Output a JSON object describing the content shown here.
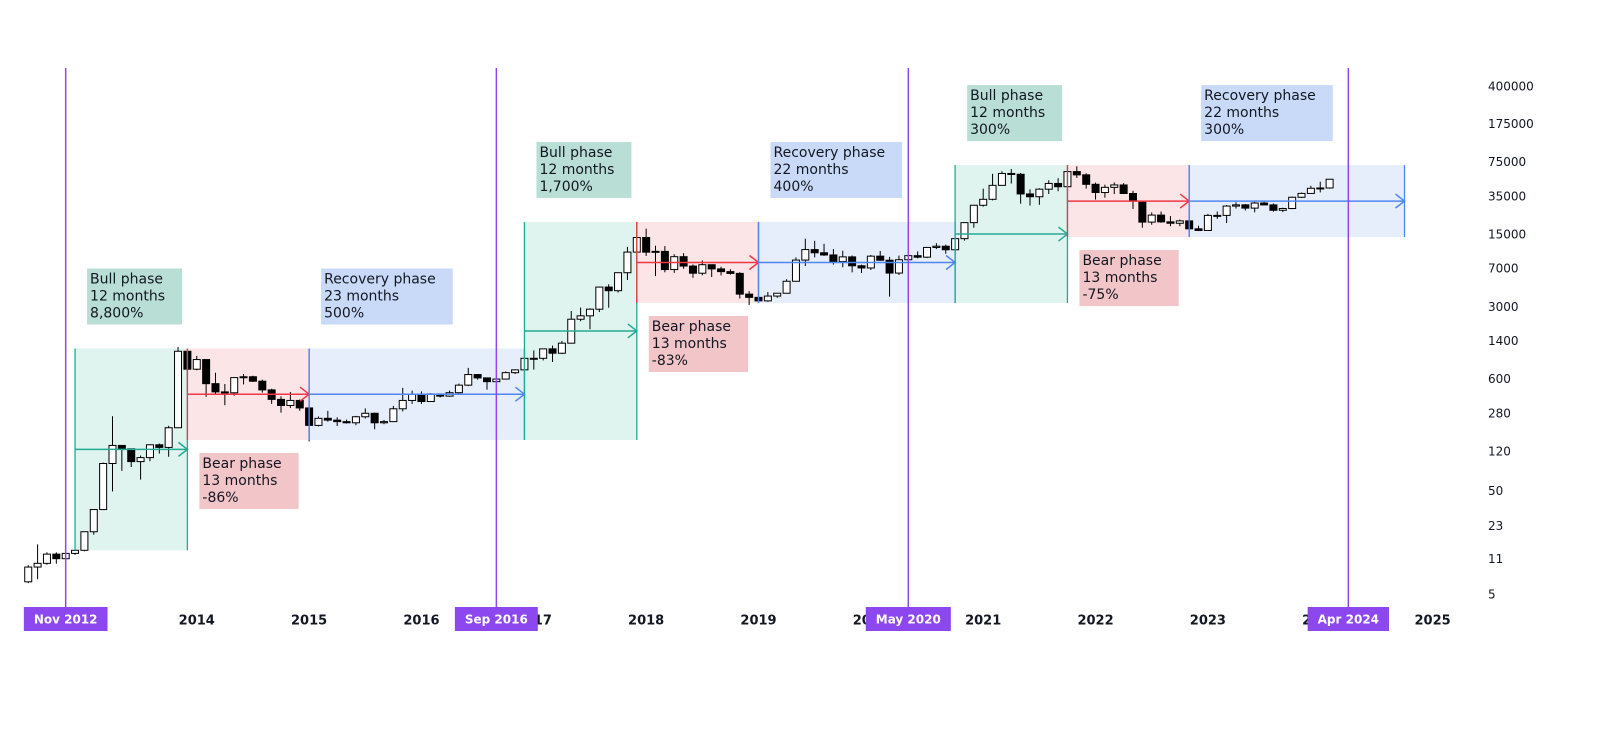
{
  "chart_data": {
    "type": "candlestick",
    "log_scale": true,
    "grid": false,
    "up_color": "#ffffff",
    "down_color": "#000000",
    "wick_color": "#000000",
    "xlim": [
      2012.4,
      2025.6
    ],
    "xticks": [
      2014,
      2015,
      2016,
      2017,
      2018,
      2019,
      2020,
      2021,
      2022,
      2023,
      2024,
      2025
    ],
    "ylim": [
      4,
      600000
    ],
    "yticks": [
      5,
      11,
      23,
      50,
      120,
      280,
      600,
      1400,
      3000,
      7000,
      15000,
      35000,
      75000,
      175000,
      400000
    ],
    "x": [
      "2012-07",
      "2012-08",
      "2012-09",
      "2012-10",
      "2012-11",
      "2012-12",
      "2013-01",
      "2013-02",
      "2013-03",
      "2013-04",
      "2013-05",
      "2013-06",
      "2013-07",
      "2013-08",
      "2013-09",
      "2013-10",
      "2013-11",
      "2013-12",
      "2014-01",
      "2014-02",
      "2014-03",
      "2014-04",
      "2014-05",
      "2014-06",
      "2014-07",
      "2014-08",
      "2014-09",
      "2014-10",
      "2014-11",
      "2014-12",
      "2015-01",
      "2015-02",
      "2015-03",
      "2015-04",
      "2015-05",
      "2015-06",
      "2015-07",
      "2015-08",
      "2015-09",
      "2015-10",
      "2015-11",
      "2015-12",
      "2016-01",
      "2016-02",
      "2016-03",
      "2016-04",
      "2016-05",
      "2016-06",
      "2016-07",
      "2016-08",
      "2016-09",
      "2016-10",
      "2016-11",
      "2016-12",
      "2017-01",
      "2017-02",
      "2017-03",
      "2017-04",
      "2017-05",
      "2017-06",
      "2017-07",
      "2017-08",
      "2017-09",
      "2017-10",
      "2017-11",
      "2017-12",
      "2018-01",
      "2018-02",
      "2018-03",
      "2018-04",
      "2018-05",
      "2018-06",
      "2018-07",
      "2018-08",
      "2018-09",
      "2018-10",
      "2018-11",
      "2018-12",
      "2019-01",
      "2019-02",
      "2019-03",
      "2019-04",
      "2019-05",
      "2019-06",
      "2019-07",
      "2019-08",
      "2019-09",
      "2019-10",
      "2019-11",
      "2019-12",
      "2020-01",
      "2020-02",
      "2020-03",
      "2020-04",
      "2020-05",
      "2020-06",
      "2020-07",
      "2020-08",
      "2020-09",
      "2020-10",
      "2020-11",
      "2020-12",
      "2021-01",
      "2021-02",
      "2021-03",
      "2021-04",
      "2021-05",
      "2021-06",
      "2021-07",
      "2021-08",
      "2021-09",
      "2021-10",
      "2021-11",
      "2021-12",
      "2022-01",
      "2022-02",
      "2022-03",
      "2022-04",
      "2022-05",
      "2022-06",
      "2022-07",
      "2022-08",
      "2022-09",
      "2022-10",
      "2022-11",
      "2022-12",
      "2023-01",
      "2023-02",
      "2023-03",
      "2023-04",
      "2023-05",
      "2023-06",
      "2023-07",
      "2023-08",
      "2023-09",
      "2023-10",
      "2023-11",
      "2023-12",
      "2024-01",
      "2024-02"
    ],
    "open": [
      6.7,
      9.3,
      10.1,
      12.4,
      11.2,
      12.6,
      13.5,
      20.4,
      33.4,
      93,
      139,
      129,
      97,
      106,
      141,
      133,
      206,
      1128,
      757,
      938,
      549,
      457,
      448,
      628,
      640,
      580,
      478,
      387,
      338,
      378,
      320,
      217,
      254,
      244,
      236,
      230,
      263,
      284,
      230,
      236,
      314,
      378,
      431,
      369,
      437,
      416,
      449,
      531,
      672,
      624,
      574,
      608,
      701,
      746,
      964,
      965,
      1190,
      1080,
      1350,
      2300,
      2480,
      2875,
      4700,
      4340,
      6470,
      10230,
      14150,
      10220,
      10400,
      6940,
      9240,
      7500,
      6400,
      7730,
      7040,
      6630,
      6370,
      4020,
      3740,
      3460,
      3850,
      4100,
      5350,
      8570,
      10820,
      10080,
      9600,
      8290,
      9200,
      7550,
      7190,
      9350,
      8540,
      6420,
      8630,
      9450,
      9140,
      11350,
      11660,
      10780,
      13800,
      19700,
      28990,
      33100,
      45140,
      58800,
      57750,
      37300,
      35040,
      41460,
      47100,
      43790,
      61300,
      57000,
      46200,
      38480,
      43190,
      45540,
      37650,
      31800,
      19940,
      23300,
      20050,
      19430,
      20490,
      17170,
      16550,
      23140,
      23150,
      28480,
      29250,
      27220,
      30470,
      29230,
      25940,
      26970,
      34650,
      37730,
      42280,
      42580
    ],
    "high": [
      9.7,
      15.4,
      12.9,
      12.9,
      12.6,
      13.9,
      20.4,
      33.4,
      95,
      266,
      140,
      129,
      111,
      141,
      145,
      215,
      1242,
      1165,
      1017,
      940,
      700,
      545,
      630,
      680,
      655,
      600,
      490,
      415,
      456,
      386,
      320,
      265,
      300,
      260,
      247,
      268,
      317,
      288,
      245,
      335,
      500,
      470,
      462,
      445,
      440,
      470,
      550,
      780,
      680,
      630,
      620,
      720,
      755,
      975,
      1150,
      1200,
      1280,
      1420,
      2760,
      2980,
      2930,
      4760,
      5000,
      6470,
      11500,
      19780,
      17250,
      11800,
      11700,
      9750,
      9990,
      7780,
      8500,
      7760,
      7400,
      7000,
      6550,
      4300,
      4100,
      4210,
      4120,
      5600,
      9100,
      13800,
      13150,
      12300,
      10950,
      10550,
      9500,
      7750,
      9600,
      10500,
      9200,
      9470,
      10070,
      10400,
      11450,
      12470,
      12070,
      14100,
      19900,
      29300,
      41950,
      58350,
      61800,
      64900,
      59600,
      41300,
      42300,
      50500,
      52900,
      67000,
      69000,
      59050,
      47990,
      45800,
      48200,
      47450,
      40000,
      31900,
      24700,
      25200,
      22800,
      21100,
      21480,
      18400,
      23950,
      25250,
      29200,
      31000,
      29800,
      31400,
      31800,
      30200,
      27500,
      35200,
      38450,
      44700,
      48970,
      52000
    ],
    "low": [
      6.5,
      7.1,
      9.8,
      10.0,
      10.5,
      12.2,
      13.2,
      19.1,
      33,
      50,
      79,
      86,
      65,
      98,
      116,
      108,
      206,
      455,
      739,
      410,
      440,
      340,
      420,
      540,
      570,
      450,
      350,
      288,
      320,
      300,
      152,
      212,
      236,
      214,
      226,
      218,
      253,
      199,
      223,
      235,
      296,
      350,
      350,
      366,
      404,
      410,
      440,
      520,
      600,
      480,
      570,
      603,
      680,
      742,
      750,
      920,
      890,
      1060,
      1350,
      2200,
      1840,
      2700,
      2970,
      4160,
      5500,
      10000,
      9400,
      6000,
      6530,
      6450,
      7050,
      5780,
      6110,
      5880,
      6100,
      6200,
      3650,
      3160,
      3400,
      3390,
      3700,
      4080,
      5330,
      7500,
      9100,
      9400,
      7750,
      7300,
      6520,
      6430,
      6870,
      8450,
      3800,
      6150,
      8100,
      8900,
      8950,
      10950,
      9880,
      10370,
      13200,
      17600,
      28100,
      32300,
      45000,
      47000,
      30000,
      28800,
      29300,
      37300,
      39600,
      43300,
      53250,
      42000,
      32900,
      34300,
      37200,
      37600,
      26700,
      17600,
      18800,
      19600,
      18200,
      18200,
      15480,
      16300,
      16500,
      21400,
      19550,
      26950,
      25800,
      24800,
      28850,
      25170,
      24900,
      26550,
      34100,
      37650,
      38550,
      41880
    ],
    "close": [
      9.3,
      10.1,
      12.4,
      11.2,
      12.6,
      13.5,
      20.4,
      33.4,
      93,
      139,
      129,
      97,
      106,
      141,
      133,
      206,
      1128,
      757,
      938,
      549,
      457,
      448,
      628,
      640,
      580,
      478,
      387,
      338,
      378,
      320,
      217,
      254,
      244,
      236,
      230,
      263,
      284,
      230,
      236,
      314,
      378,
      431,
      369,
      437,
      416,
      449,
      531,
      672,
      624,
      574,
      608,
      701,
      746,
      964,
      965,
      1190,
      1080,
      1350,
      2300,
      2480,
      2875,
      4700,
      4340,
      6470,
      10230,
      14150,
      10220,
      10400,
      6940,
      9240,
      7500,
      6400,
      7730,
      7040,
      6630,
      6370,
      4020,
      3740,
      3460,
      3850,
      4100,
      5350,
      8570,
      10820,
      10080,
      9600,
      8290,
      9200,
      7550,
      7190,
      9350,
      8540,
      6420,
      8630,
      9450,
      9140,
      11350,
      11660,
      10780,
      13800,
      19700,
      28990,
      33100,
      45140,
      58800,
      57750,
      37300,
      35040,
      41460,
      47100,
      43790,
      61300,
      57000,
      46200,
      38480,
      43190,
      45540,
      37650,
      31800,
      19940,
      23300,
      20050,
      19430,
      20490,
      17170,
      16550,
      23140,
      23150,
      28480,
      29250,
      27220,
      30470,
      29230,
      25940,
      26970,
      34650,
      37730,
      42280,
      42580,
      51700
    ],
    "phases": [
      {
        "name": "Bull phase",
        "duration": "12 months",
        "change": "8,800%",
        "start": "2012-12",
        "end": "2013-12",
        "low": 13.5,
        "high": 1200,
        "color": "#22ab94",
        "fill": "#dff3ef",
        "label_fill": "#b9ded6",
        "label": "above"
      },
      {
        "name": "Bear phase",
        "duration": "13 months",
        "change": "-86%",
        "start": "2013-12",
        "end": "2015-01",
        "low": 157,
        "high": 1200,
        "color": "#f23645",
        "fill": "#fbe5e6",
        "label_fill": "#f2c5c9",
        "label": "below"
      },
      {
        "name": "Recovery phase",
        "duration": "23 months",
        "change": "500%",
        "start": "2015-01",
        "end": "2016-12",
        "low": 157,
        "high": 1200,
        "color": "#4f87ef",
        "fill": "#e6eefc",
        "label_fill": "#c9daf8",
        "label": "above"
      },
      {
        "name": "Bull phase",
        "duration": "12 months",
        "change": "1,700%",
        "start": "2016-12",
        "end": "2017-12",
        "low": 157,
        "high": 20000,
        "color": "#22ab94",
        "fill": "#dff3ef",
        "label_fill": "#b9ded6",
        "label": "above"
      },
      {
        "name": "Bear phase",
        "duration": "13 months",
        "change": "-83%",
        "start": "2017-12",
        "end": "2019-01",
        "low": 3300,
        "high": 20000,
        "color": "#f23645",
        "fill": "#fbe5e6",
        "label_fill": "#f2c5c9",
        "label": "below"
      },
      {
        "name": "Recovery phase",
        "duration": "22 months",
        "change": "400%",
        "start": "2019-01",
        "end": "2020-10",
        "low": 3300,
        "high": 20000,
        "color": "#4f87ef",
        "fill": "#e6eefc",
        "label_fill": "#c9daf8",
        "label": "above"
      },
      {
        "name": "Bull phase",
        "duration": "12 months",
        "change": "300%",
        "start": "2020-10",
        "end": "2021-10",
        "low": 3300,
        "high": 70800,
        "color": "#22ab94",
        "fill": "#dff3ef",
        "label_fill": "#b9ded6",
        "label": "above"
      },
      {
        "name": "Bear phase",
        "duration": "13 months",
        "change": "-75%",
        "start": "2021-10",
        "end": "2022-11",
        "low": 14300,
        "high": 70800,
        "color": "#f23645",
        "fill": "#fbe5e6",
        "label_fill": "#f2c5c9",
        "label": "below"
      },
      {
        "name": "Recovery phase",
        "duration": "22 months",
        "change": "300%",
        "start": "2022-11",
        "end": "2024-10",
        "low": 14300,
        "high": 70800,
        "color": "#4f87ef",
        "fill": "#e6eefc",
        "label_fill": "#c9daf8",
        "label": "above"
      }
    ],
    "halving_color": "#8c47ef",
    "halvings": [
      {
        "x": "2012-11",
        "label": "Nov 2012"
      },
      {
        "x": "2016-09",
        "label": "Sep 2016"
      },
      {
        "x": "2020-05",
        "label": "May 2020"
      },
      {
        "x": "2024-04",
        "label": "Apr 2024"
      }
    ]
  }
}
